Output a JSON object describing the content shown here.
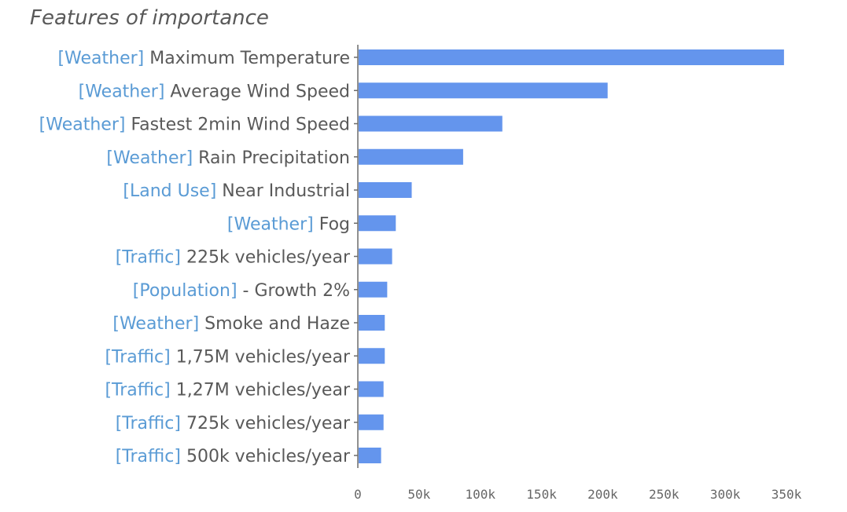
{
  "chart_data": {
    "type": "bar",
    "orientation": "horizontal",
    "title": "Features of importance",
    "bar_color": "#6495ed",
    "category_color": "#5a9bd5",
    "label_color": "#595959",
    "xlim": [
      0,
      350000
    ],
    "grid": false,
    "x_ticks": [
      {
        "value": 0,
        "label": "0"
      },
      {
        "value": 50000,
        "label": "50k"
      },
      {
        "value": 100000,
        "label": "100k"
      },
      {
        "value": 150000,
        "label": "150k"
      },
      {
        "value": 200000,
        "label": "200k"
      },
      {
        "value": 250000,
        "label": "250k"
      },
      {
        "value": 300000,
        "label": "300k"
      },
      {
        "value": 350000,
        "label": "350k"
      }
    ],
    "categories": [
      {
        "tag": "[Weather]",
        "name": "Maximum Temperature"
      },
      {
        "tag": "[Weather]",
        "name": "Average Wind Speed"
      },
      {
        "tag": "[Weather]",
        "name": "Fastest 2min Wind Speed"
      },
      {
        "tag": "[Weather]",
        "name": "Rain Precipitation"
      },
      {
        "tag": "[Land Use]",
        "name": "Near Industrial"
      },
      {
        "tag": "[Weather]",
        "name": "Fog"
      },
      {
        "tag": "[Traffic]",
        "name": "225k vehicles/year"
      },
      {
        "tag": "[Population]",
        "name": "- Growth 2%"
      },
      {
        "tag": "[Weather]",
        "name": "Smoke and Haze"
      },
      {
        "tag": "[Traffic]",
        "name": "1,75M vehicles/year"
      },
      {
        "tag": "[Traffic]",
        "name": "1,27M vehicles/year"
      },
      {
        "tag": "[Traffic]",
        "name": "725k vehicles/year"
      },
      {
        "tag": "[Traffic]",
        "name": "500k vehicles/year"
      }
    ],
    "values": [
      348000,
      204000,
      118000,
      86000,
      44000,
      31000,
      28000,
      24000,
      22000,
      22000,
      21000,
      21000,
      19000
    ]
  }
}
